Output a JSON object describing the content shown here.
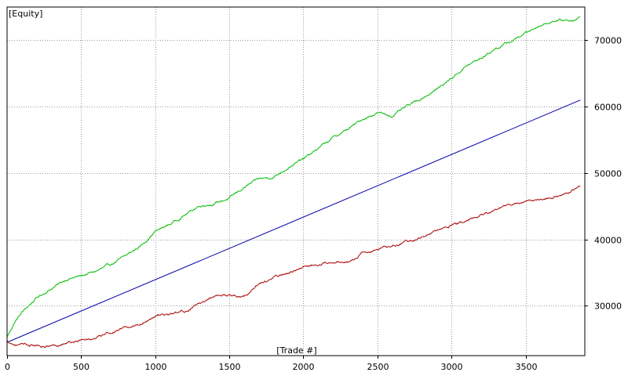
{
  "chart_data": {
    "type": "line",
    "title": "",
    "ylabel": "[Equity]",
    "xlabel": "[Trade #]",
    "xlim": [
      0,
      3900
    ],
    "ylim": [
      22500,
      75000
    ],
    "x_ticks": [
      0,
      500,
      1000,
      1500,
      2000,
      2500,
      3000,
      3500
    ],
    "y_ticks": [
      30000,
      40000,
      50000,
      60000,
      70000
    ],
    "x_tick_labels": [
      "0",
      "500",
      "1000",
      "1500",
      "2000",
      "2500",
      "3000",
      "3500"
    ],
    "y_tick_labels": [
      "30000",
      "40000",
      "50000",
      "60000",
      "70000"
    ],
    "grid": true,
    "colors": {
      "upper": "#00bb00",
      "mid": "#0000aa",
      "lower": "#aa0000",
      "grid": "#9a9a9a",
      "frame": "#000000"
    },
    "series": [
      {
        "key": "upper",
        "x": [
          0,
          50,
          100,
          200,
          300,
          400,
          500,
          600,
          700,
          800,
          900,
          1000,
          1100,
          1200,
          1300,
          1400,
          1500,
          1600,
          1700,
          1800,
          1900,
          2000,
          2100,
          2200,
          2300,
          2400,
          2500,
          2600,
          2700,
          2800,
          2900,
          3000,
          3100,
          3200,
          3300,
          3400,
          3500,
          3600,
          3700,
          3800,
          3870
        ],
        "y": [
          25300,
          27500,
          29000,
          31200,
          32600,
          34000,
          34500,
          35200,
          36200,
          37500,
          39000,
          41200,
          42300,
          43700,
          45100,
          45400,
          46200,
          47800,
          49100,
          49400,
          50900,
          52100,
          53700,
          55300,
          56600,
          58100,
          59100,
          58600,
          60000,
          61300,
          62600,
          64300,
          66100,
          67300,
          68800,
          69800,
          71100,
          72300,
          73000,
          73000,
          73400
        ]
      },
      {
        "key": "mid",
        "x": [
          0,
          3870
        ],
        "y": [
          24500,
          61000
        ]
      },
      {
        "key": "lower",
        "x": [
          0,
          50,
          100,
          200,
          300,
          400,
          500,
          600,
          700,
          800,
          900,
          1000,
          1100,
          1200,
          1300,
          1400,
          1500,
          1600,
          1700,
          1800,
          1900,
          2000,
          2100,
          2200,
          2300,
          2400,
          2500,
          2600,
          2700,
          2800,
          2900,
          3000,
          3100,
          3200,
          3300,
          3400,
          3500,
          3600,
          3700,
          3800,
          3870
        ],
        "y": [
          24700,
          24200,
          24100,
          24000,
          24000,
          24400,
          24800,
          25100,
          26000,
          26600,
          27300,
          28500,
          28700,
          29200,
          30200,
          31600,
          31700,
          31400,
          33300,
          34200,
          35000,
          35800,
          36300,
          36800,
          36500,
          37900,
          38400,
          39100,
          39700,
          40400,
          41200,
          42100,
          42800,
          43800,
          44400,
          45300,
          45700,
          46000,
          46500,
          47100,
          48000
        ]
      }
    ]
  }
}
